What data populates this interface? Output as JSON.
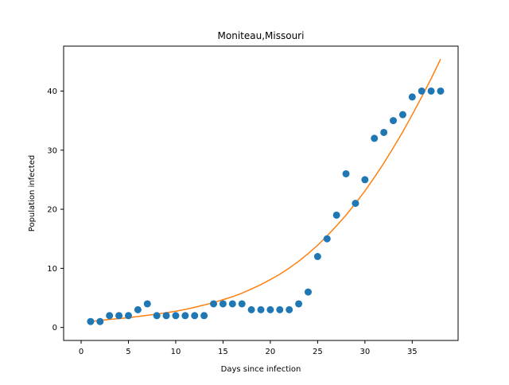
{
  "chart_data": {
    "type": "scatter",
    "title": "Moniteau,Missouri",
    "xlabel": "Days since infection",
    "ylabel": "Population infected",
    "xlim": [
      -1.85,
      39.85
    ],
    "ylim": [
      -2.2,
      47.6
    ],
    "xticks": [
      0,
      5,
      10,
      15,
      20,
      25,
      30,
      35
    ],
    "yticks": [
      0,
      10,
      20,
      30,
      40
    ],
    "grid": false,
    "series": [
      {
        "kind": "scatter",
        "color": "#1f77b4",
        "x": [
          1,
          2,
          3,
          4,
          5,
          6,
          7,
          8,
          9,
          10,
          11,
          12,
          13,
          14,
          15,
          16,
          17,
          18,
          19,
          20,
          21,
          22,
          23,
          24,
          25,
          26,
          27,
          28,
          29,
          30,
          31,
          32,
          33,
          34,
          35,
          36,
          37,
          38
        ],
        "y": [
          1,
          1,
          2,
          2,
          2,
          3,
          4,
          2,
          2,
          2,
          2,
          2,
          2,
          4,
          4,
          4,
          4,
          3,
          3,
          3,
          3,
          3,
          4,
          6,
          12,
          15,
          19,
          26,
          21,
          25,
          32,
          33,
          35,
          36,
          39,
          40,
          40,
          40
        ]
      },
      {
        "kind": "line",
        "color": "#ff7f0e",
        "x": [
          1,
          2,
          3,
          4,
          5,
          6,
          7,
          8,
          9,
          10,
          11,
          12,
          13,
          14,
          15,
          16,
          17,
          18,
          19,
          20,
          21,
          22,
          23,
          24,
          25,
          26,
          27,
          28,
          29,
          30,
          31,
          32,
          33,
          34,
          35,
          36,
          37,
          38
        ],
        "y": [
          1.0,
          1.2,
          1.35,
          1.5,
          1.65,
          1.85,
          2.05,
          2.25,
          2.5,
          2.75,
          3.05,
          3.4,
          3.8,
          4.2,
          4.7,
          5.2,
          5.8,
          6.5,
          7.25,
          8.1,
          9.0,
          10.05,
          11.2,
          12.5,
          13.9,
          15.5,
          17.2,
          19.0,
          21.0,
          23.1,
          25.4,
          27.8,
          30.4,
          33.1,
          36.0,
          39.0,
          42.1,
          45.4
        ]
      }
    ]
  }
}
